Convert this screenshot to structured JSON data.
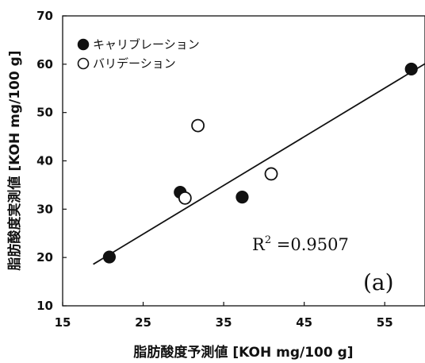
{
  "chart_data": {
    "type": "scatter",
    "xlabel": "脂肪酸度予測値 [KOH mg/100 g]",
    "ylabel": "脂肪酸度実測値 [KOH mg/100 g]",
    "xlim": [
      15,
      60
    ],
    "ylim": [
      10,
      70
    ],
    "xticks": [
      "15",
      "25",
      "35",
      "45",
      "55"
    ],
    "yticks": [
      "10",
      "20",
      "30",
      "40",
      "50",
      "60",
      "70"
    ],
    "grid": false,
    "legend_position": "top-left",
    "series": [
      {
        "name": "キャリブレーション",
        "marker": "filled-circle",
        "color": "#111111",
        "points": [
          {
            "x": 20.8,
            "y": 20.1
          },
          {
            "x": 29.6,
            "y": 33.5
          },
          {
            "x": 37.3,
            "y": 32.5
          },
          {
            "x": 58.3,
            "y": 59.0
          }
        ]
      },
      {
        "name": "バリデーション",
        "marker": "open-circle",
        "color": "#111111",
        "points": [
          {
            "x": 30.2,
            "y": 32.3
          },
          {
            "x": 31.8,
            "y": 47.3
          },
          {
            "x": 40.9,
            "y": 37.3
          }
        ]
      }
    ],
    "fit_line": {
      "x": [
        18.8,
        60
      ],
      "y": [
        18.6,
        60.1
      ]
    },
    "annotations": {
      "r2_base": "R",
      "r2_sup": "2",
      "r2_value": " =0.9507",
      "panel_label": "(a)"
    }
  }
}
